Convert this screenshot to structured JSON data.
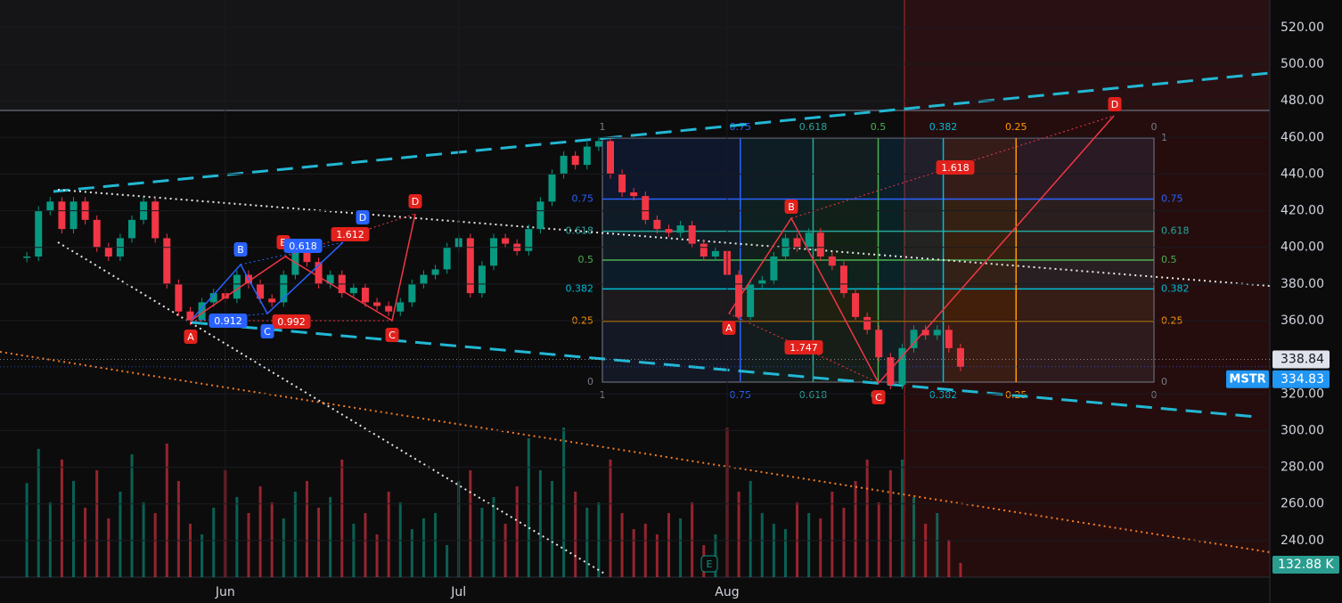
{
  "chart_data": {
    "type": "candlestick",
    "symbol": "MSTR",
    "close": [
      395,
      420,
      425,
      410,
      425,
      415,
      400,
      395,
      405,
      415,
      425,
      405,
      380,
      365,
      360,
      370,
      375,
      372,
      385,
      380,
      372,
      370,
      385,
      400,
      392,
      380,
      385,
      375,
      378,
      370,
      368,
      365,
      370,
      380,
      385,
      388,
      400,
      405,
      375,
      390,
      405,
      402,
      398,
      410,
      425,
      440,
      450,
      445,
      455,
      458,
      440,
      430,
      428,
      415,
      410,
      408,
      412,
      402,
      395,
      398,
      385,
      362,
      380,
      382,
      395,
      405,
      400,
      408,
      395,
      390,
      375,
      362,
      355,
      340,
      325,
      345,
      355,
      352,
      355,
      345,
      334.83
    ],
    "volume": [
      880,
      1200,
      700,
      1100,
      900,
      650,
      1000,
      550,
      800,
      1150,
      700,
      600,
      1250,
      900,
      500,
      400,
      650,
      1000,
      750,
      600,
      850,
      700,
      550,
      800,
      900,
      650,
      750,
      1100,
      500,
      600,
      400,
      800,
      700,
      450,
      550,
      600,
      300,
      900,
      1000,
      650,
      750,
      500,
      850,
      1300,
      1000,
      900,
      1400,
      800,
      650,
      700,
      1100,
      600,
      450,
      500,
      400,
      600,
      550,
      700,
      300,
      400,
      1400,
      800,
      900,
      600,
      500,
      450,
      700,
      600,
      550,
      800,
      650,
      900,
      1100,
      700,
      1000,
      1100,
      750,
      500,
      600,
      350,
      132.88
    ],
    "up_color": "#089981",
    "down_color": "#f23645",
    "ylim": [
      220,
      535
    ],
    "yticks": [
      {
        "value": 520,
        "label": "520.00"
      },
      {
        "value": 500,
        "label": "500.00"
      },
      {
        "value": 480,
        "label": "480.00"
      },
      {
        "value": 460,
        "label": "460.00"
      },
      {
        "value": 440,
        "label": "440.00"
      },
      {
        "value": 420,
        "label": "420.00"
      },
      {
        "value": 400,
        "label": "400.00"
      },
      {
        "value": 380,
        "label": "380.00"
      },
      {
        "value": 360,
        "label": "360.00"
      },
      {
        "value": 320,
        "label": "320.00"
      },
      {
        "value": 300,
        "label": "300.00"
      },
      {
        "value": 280,
        "label": "280.00"
      },
      {
        "value": 260,
        "label": "260.00"
      },
      {
        "value": 240,
        "label": "240.00"
      }
    ],
    "xlim": [
      -2.3,
      106.5
    ],
    "xticks": [
      {
        "value": 17,
        "label": "Jun"
      },
      {
        "value": 37,
        "label": "Jul"
      },
      {
        "value": 60,
        "label": "Aug"
      }
    ],
    "price_lines": [
      338.84,
      334.83
    ],
    "last_volume": {
      "value": 132.88,
      "label": "132.88 K"
    },
    "fib": {
      "levels": [
        1,
        0.75,
        0.618,
        0.5,
        0.382,
        0.25,
        0
      ],
      "colors": [
        "#787b86",
        "#2962ff",
        "#26a69a",
        "#4caf50",
        "#00bcd4",
        "#ff9800",
        "#787b86"
      ]
    }
  },
  "annotations": {
    "left_red": {
      "labels": [
        "A",
        "B",
        "C",
        "D"
      ],
      "ratios": [
        0.992,
        1.612
      ]
    },
    "left_blue": {
      "labels": [
        "B",
        "C",
        "D"
      ],
      "ratios": [
        0.912,
        0.618
      ]
    },
    "right_red": {
      "labels": [
        "A",
        "B",
        "C",
        "D"
      ],
      "ratios": [
        1.747,
        1.618
      ]
    },
    "earnings": "E"
  }
}
